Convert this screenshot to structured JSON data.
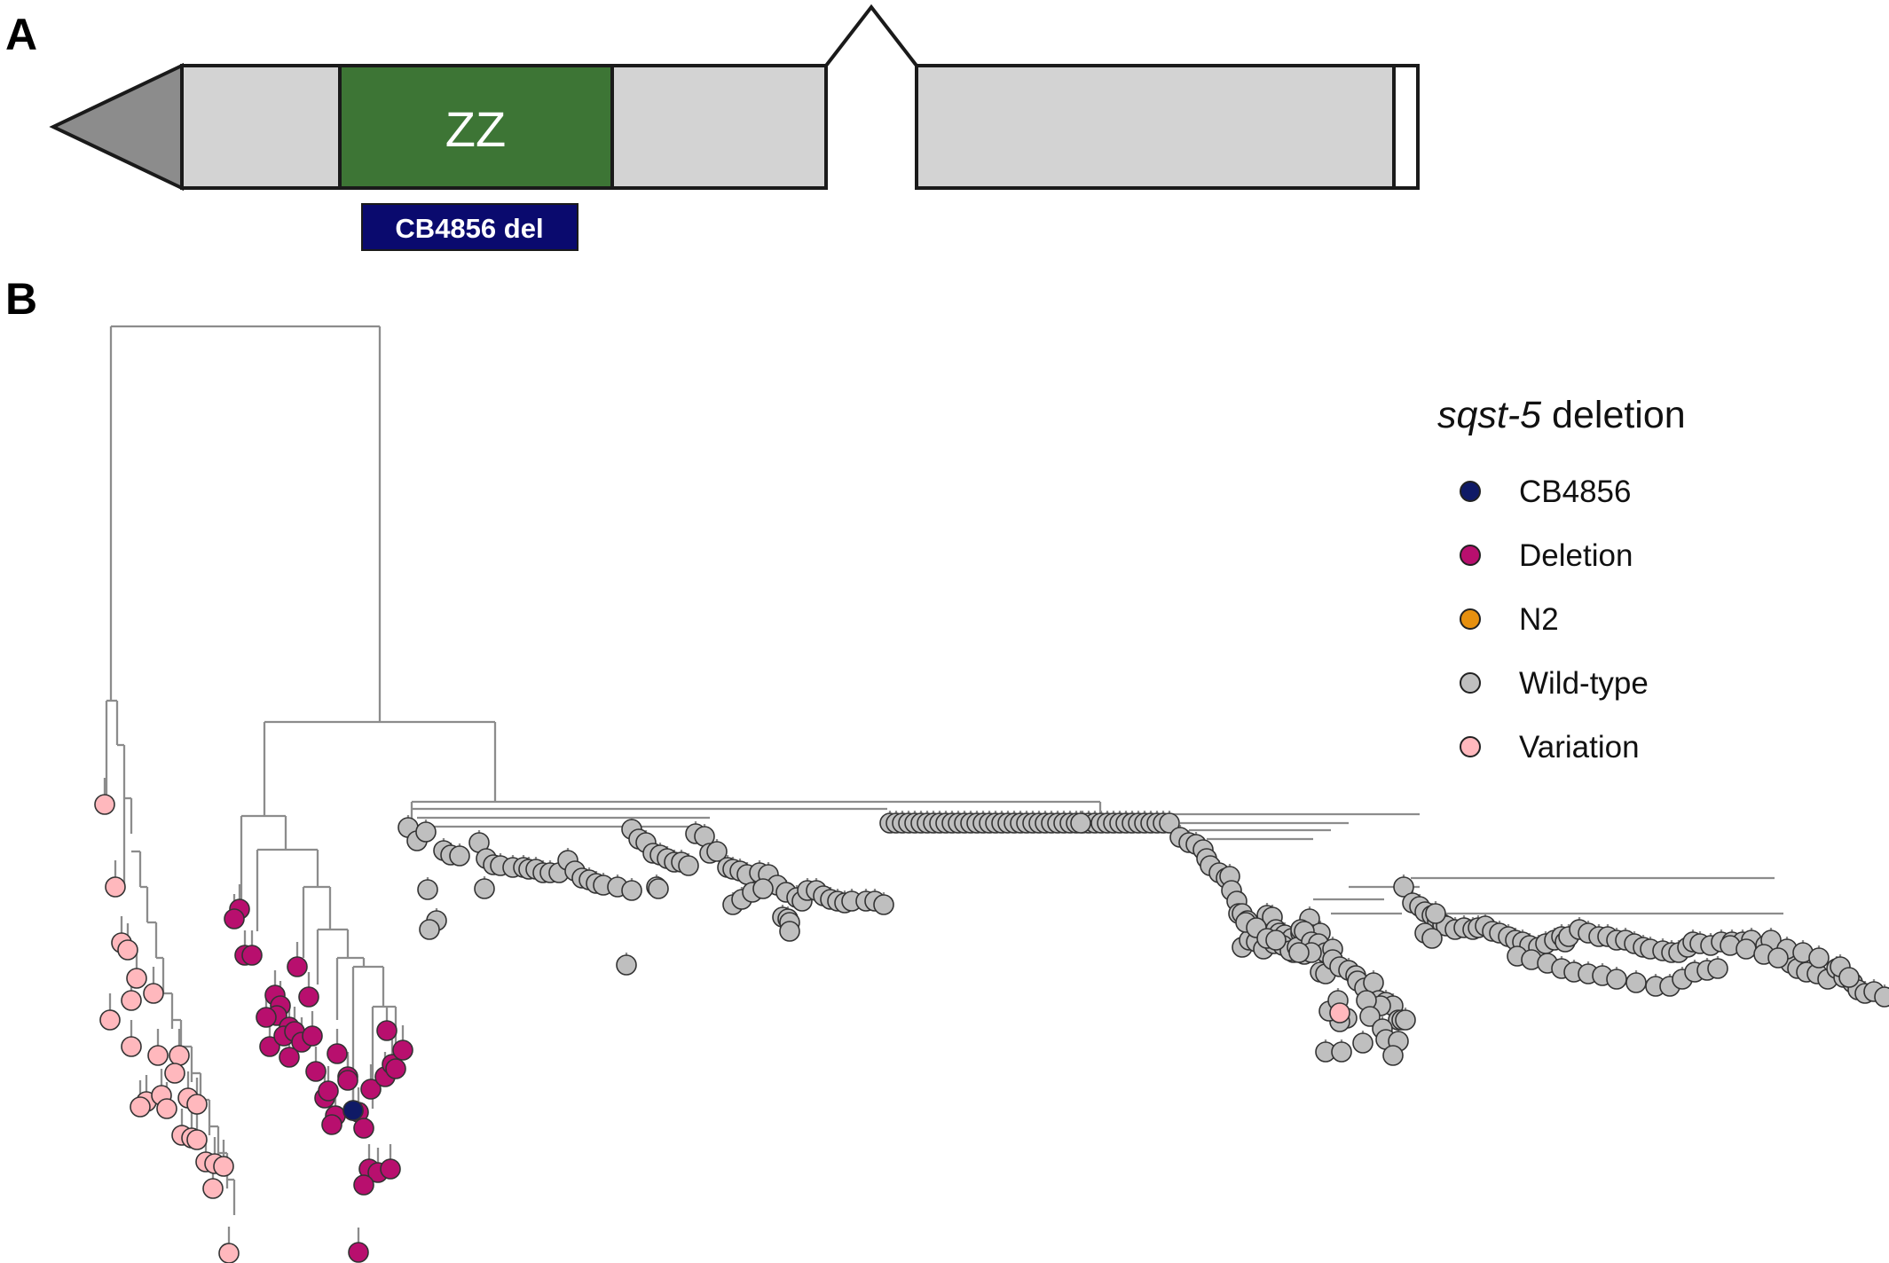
{
  "panels": {
    "a": "A",
    "b": "B"
  },
  "gene_model": {
    "domain_label": "ZZ",
    "deletion_label": "CB4856 del",
    "colors": {
      "utr": "#8c8c8c",
      "exon": "#d3d3d3",
      "domain": "#3d7535",
      "deletion": "#0a0a6e"
    }
  },
  "legend": {
    "title_italic": "sqst-5",
    "title_rest": " deletion",
    "items": [
      {
        "label": "CB4856",
        "color": "#0f1a66"
      },
      {
        "label": "Deletion",
        "color": "#b80f6e"
      },
      {
        "label": "N2",
        "color": "#e6900f"
      },
      {
        "label": "Wild-type",
        "color": "#bfbfbf"
      },
      {
        "label": "Variation",
        "color": "#ffb8bd"
      }
    ]
  }
}
